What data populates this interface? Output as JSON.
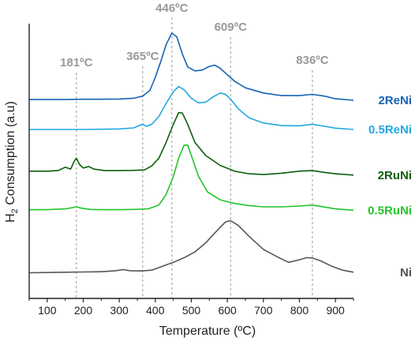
{
  "chart_data": {
    "type": "line",
    "xlabel": "Temperature (ºC)",
    "ylabel_main": "H",
    "ylabel_sub": "2",
    "ylabel_rest": " Consumption (a.u)",
    "xlim": [
      50,
      950
    ],
    "ylim": [
      0,
      1
    ],
    "x_ticks": [
      "100",
      "200",
      "300",
      "400",
      "500",
      "600",
      "700",
      "800",
      "900"
    ],
    "x_tick_values": [
      100,
      200,
      300,
      400,
      500,
      600,
      700,
      800,
      900
    ],
    "grid": false,
    "reference_lines": [
      {
        "x": 181,
        "label": "181ºC"
      },
      {
        "x": 365,
        "label": "365ºC"
      },
      {
        "x": 446,
        "label": "446ºC"
      },
      {
        "x": 609,
        "label": "609ºC"
      },
      {
        "x": 836,
        "label": "836ºC"
      }
    ],
    "series": [
      {
        "name": "2ReNi",
        "color": "#1463b4",
        "points": [
          [
            50,
            0.715
          ],
          [
            100,
            0.715
          ],
          [
            150,
            0.715
          ],
          [
            200,
            0.716
          ],
          [
            250,
            0.716
          ],
          [
            300,
            0.717
          ],
          [
            340,
            0.72
          ],
          [
            365,
            0.728
          ],
          [
            385,
            0.75
          ],
          [
            400,
            0.8
          ],
          [
            415,
            0.86
          ],
          [
            430,
            0.925
          ],
          [
            446,
            0.97
          ],
          [
            460,
            0.955
          ],
          [
            475,
            0.89
          ],
          [
            490,
            0.84
          ],
          [
            510,
            0.825
          ],
          [
            530,
            0.828
          ],
          [
            550,
            0.842
          ],
          [
            565,
            0.847
          ],
          [
            580,
            0.835
          ],
          [
            600,
            0.81
          ],
          [
            620,
            0.785
          ],
          [
            650,
            0.76
          ],
          [
            700,
            0.74
          ],
          [
            750,
            0.73
          ],
          [
            800,
            0.73
          ],
          [
            836,
            0.735
          ],
          [
            870,
            0.728
          ],
          [
            900,
            0.718
          ],
          [
            950,
            0.712
          ]
        ]
      },
      {
        "name": "0.5ReNi",
        "color": "#23a8e0",
        "points": [
          [
            50,
            0.6
          ],
          [
            100,
            0.6
          ],
          [
            150,
            0.6
          ],
          [
            200,
            0.6
          ],
          [
            250,
            0.601
          ],
          [
            300,
            0.602
          ],
          [
            340,
            0.606
          ],
          [
            355,
            0.615
          ],
          [
            365,
            0.62
          ],
          [
            375,
            0.612
          ],
          [
            390,
            0.62
          ],
          [
            410,
            0.65
          ],
          [
            430,
            0.7
          ],
          [
            450,
            0.745
          ],
          [
            465,
            0.765
          ],
          [
            480,
            0.752
          ],
          [
            500,
            0.72
          ],
          [
            520,
            0.702
          ],
          [
            540,
            0.705
          ],
          [
            560,
            0.725
          ],
          [
            580,
            0.74
          ],
          [
            595,
            0.735
          ],
          [
            610,
            0.715
          ],
          [
            630,
            0.68
          ],
          [
            660,
            0.645
          ],
          [
            700,
            0.625
          ],
          [
            750,
            0.615
          ],
          [
            800,
            0.614
          ],
          [
            836,
            0.62
          ],
          [
            870,
            0.612
          ],
          [
            900,
            0.605
          ],
          [
            950,
            0.6
          ]
        ]
      },
      {
        "name": "2RuNi",
        "color": "#0c5e0c",
        "points": [
          [
            50,
            0.44
          ],
          [
            100,
            0.44
          ],
          [
            130,
            0.442
          ],
          [
            150,
            0.455
          ],
          [
            165,
            0.448
          ],
          [
            175,
            0.478
          ],
          [
            181,
            0.49
          ],
          [
            190,
            0.465
          ],
          [
            200,
            0.452
          ],
          [
            215,
            0.458
          ],
          [
            230,
            0.448
          ],
          [
            260,
            0.442
          ],
          [
            300,
            0.442
          ],
          [
            340,
            0.443
          ],
          [
            370,
            0.445
          ],
          [
            390,
            0.46
          ],
          [
            410,
            0.49
          ],
          [
            430,
            0.55
          ],
          [
            450,
            0.62
          ],
          [
            465,
            0.665
          ],
          [
            475,
            0.663
          ],
          [
            490,
            0.62
          ],
          [
            510,
            0.55
          ],
          [
            540,
            0.5
          ],
          [
            580,
            0.462
          ],
          [
            620,
            0.44
          ],
          [
            660,
            0.43
          ],
          [
            700,
            0.427
          ],
          [
            750,
            0.432
          ],
          [
            800,
            0.44
          ],
          [
            836,
            0.442
          ],
          [
            870,
            0.435
          ],
          [
            900,
            0.43
          ],
          [
            950,
            0.425
          ]
        ]
      },
      {
        "name": "0.5RuNi",
        "color": "#22c42a",
        "points": [
          [
            50,
            0.292
          ],
          [
            100,
            0.292
          ],
          [
            150,
            0.295
          ],
          [
            170,
            0.3
          ],
          [
            181,
            0.303
          ],
          [
            195,
            0.298
          ],
          [
            220,
            0.293
          ],
          [
            260,
            0.292
          ],
          [
            300,
            0.292
          ],
          [
            340,
            0.293
          ],
          [
            380,
            0.295
          ],
          [
            410,
            0.31
          ],
          [
            430,
            0.35
          ],
          [
            450,
            0.42
          ],
          [
            465,
            0.49
          ],
          [
            480,
            0.54
          ],
          [
            490,
            0.54
          ],
          [
            500,
            0.5
          ],
          [
            520,
            0.42
          ],
          [
            545,
            0.36
          ],
          [
            580,
            0.33
          ],
          [
            620,
            0.316
          ],
          [
            660,
            0.308
          ],
          [
            700,
            0.303
          ],
          [
            750,
            0.303
          ],
          [
            800,
            0.306
          ],
          [
            836,
            0.31
          ],
          [
            870,
            0.302
          ],
          [
            900,
            0.295
          ],
          [
            950,
            0.29
          ]
        ]
      },
      {
        "name": "Ni",
        "color": "#555555",
        "points": [
          [
            50,
            0.05
          ],
          [
            100,
            0.051
          ],
          [
            150,
            0.052
          ],
          [
            200,
            0.053
          ],
          [
            250,
            0.054
          ],
          [
            290,
            0.058
          ],
          [
            310,
            0.062
          ],
          [
            330,
            0.058
          ],
          [
            360,
            0.057
          ],
          [
            390,
            0.06
          ],
          [
            420,
            0.075
          ],
          [
            450,
            0.09
          ],
          [
            480,
            0.108
          ],
          [
            510,
            0.13
          ],
          [
            540,
            0.165
          ],
          [
            570,
            0.21
          ],
          [
            595,
            0.245
          ],
          [
            609,
            0.25
          ],
          [
            630,
            0.232
          ],
          [
            660,
            0.19
          ],
          [
            700,
            0.14
          ],
          [
            740,
            0.11
          ],
          [
            770,
            0.09
          ],
          [
            800,
            0.1
          ],
          [
            820,
            0.108
          ],
          [
            836,
            0.107
          ],
          [
            860,
            0.095
          ],
          [
            890,
            0.075
          ],
          [
            920,
            0.06
          ],
          [
            950,
            0.052
          ]
        ]
      }
    ]
  }
}
